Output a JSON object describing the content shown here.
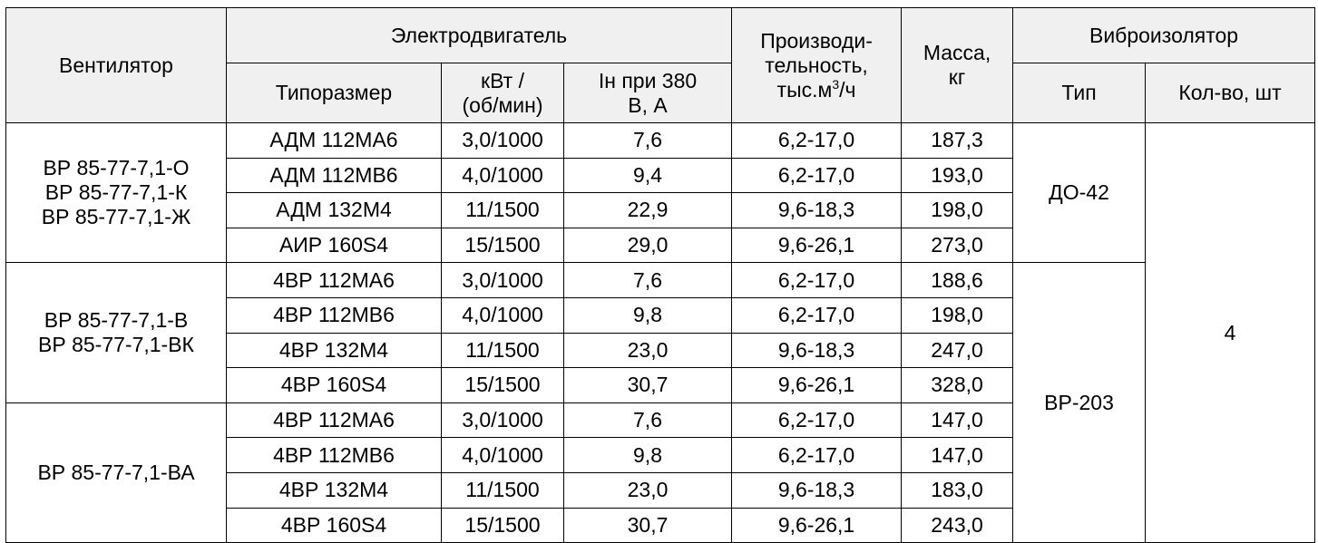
{
  "header": {
    "fan": "Вентилятор",
    "motor": "Электродвигатель",
    "size": "Типоразмер",
    "power": [
      "кВт /",
      "(об/мин)"
    ],
    "current": [
      "Iн при 380",
      "В, А"
    ],
    "capacity": [
      "Производи-",
      "тельность,"
    ],
    "capacity_unit_prefix": "тыс.м",
    "capacity_unit_sup": "3",
    "capacity_unit_suffix": "/ч",
    "mass": [
      "Масса,",
      "кг"
    ],
    "isolator": "Виброизолятор",
    "iso_type": "Тип",
    "iso_count": "Кол-во, шт"
  },
  "groups": [
    {
      "fan": [
        "ВР 85-77-7,1-О",
        "ВР 85-77-7,1-К",
        "ВР 85-77-7,1-Ж"
      ],
      "rows": [
        {
          "size": "АДМ 112МА6",
          "power": "3,0/1000",
          "current": "7,6",
          "capacity": "6,2-17,0",
          "mass": "187,3"
        },
        {
          "size": "АДМ 112МВ6",
          "power": "4,0/1000",
          "current": "9,4",
          "capacity": "6,2-17,0",
          "mass": "193,0"
        },
        {
          "size": "АДМ 132М4",
          "power": "11/1500",
          "current": "22,9",
          "capacity": "9,6-18,3",
          "mass": "198,0"
        },
        {
          "size": "АИР 160S4",
          "power": "15/1500",
          "current": "29,0",
          "capacity": "9,6-26,1",
          "mass": "273,0"
        }
      ]
    },
    {
      "fan": [
        "ВР 85-77-7,1-В",
        "ВР 85-77-7,1-ВК"
      ],
      "rows": [
        {
          "size": "4ВР 112МА6",
          "power": "3,0/1000",
          "current": "7,6",
          "capacity": "6,2-17,0",
          "mass": "188,6"
        },
        {
          "size": "4ВР 112МВ6",
          "power": "4,0/1000",
          "current": "9,8",
          "capacity": "6,2-17,0",
          "mass": "198,0"
        },
        {
          "size": "4ВР 132М4",
          "power": "11/1500",
          "current": "23,0",
          "capacity": "9,6-18,3",
          "mass": "247,0"
        },
        {
          "size": "4ВР 160S4",
          "power": "15/1500",
          "current": "30,7",
          "capacity": "9,6-26,1",
          "mass": "328,0"
        }
      ]
    },
    {
      "fan": [
        "ВР 85-77-7,1-ВА"
      ],
      "rows": [
        {
          "size": "4ВР 112МА6",
          "power": "3,0/1000",
          "current": "7,6",
          "capacity": "6,2-17,0",
          "mass": "147,0"
        },
        {
          "size": "4ВР 112МВ6",
          "power": "4,0/1000",
          "current": "9,8",
          "capacity": "6,2-17,0",
          "mass": "147,0"
        },
        {
          "size": "4ВР 132М4",
          "power": "11/1500",
          "current": "23,0",
          "capacity": "9,6-18,3",
          "mass": "183,0"
        },
        {
          "size": "4ВР 160S4",
          "power": "15/1500",
          "current": "30,7",
          "capacity": "9,6-26,1",
          "mass": "243,0"
        }
      ]
    }
  ],
  "isolators": {
    "type_1": "ДО-42",
    "type_2": "ВР-203",
    "count": "4"
  }
}
